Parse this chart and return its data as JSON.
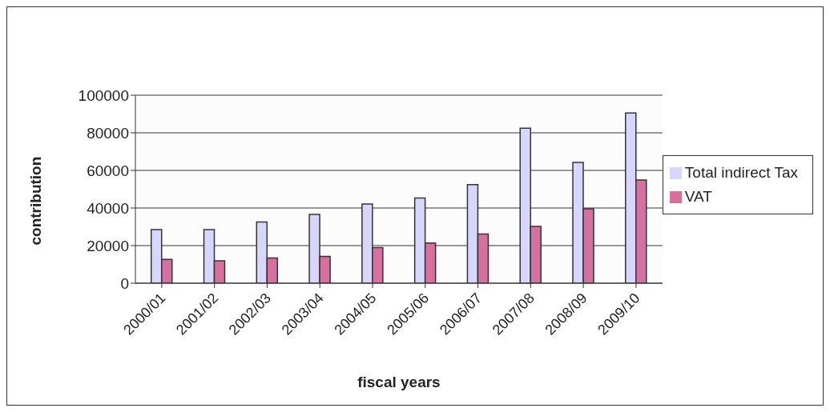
{
  "chart_data": {
    "type": "bar",
    "xlabel": "fiscal years",
    "ylabel": "contribution",
    "categories": [
      "2000/01",
      "2001/02",
      "2002/03",
      "2003/04",
      "2004/05",
      "2005/06",
      "2006/07",
      "2007/08",
      "2008/09",
      "2009/10"
    ],
    "series": [
      {
        "name": "Total indirect Tax",
        "color": "#d6d6ff",
        "values": [
          28500,
          28500,
          32600,
          36600,
          42100,
          45300,
          52400,
          82500,
          64300,
          90500
        ]
      },
      {
        "name": "VAT",
        "color": "#d6709e",
        "values": [
          12700,
          11900,
          13400,
          14300,
          18900,
          21400,
          26200,
          30200,
          39600,
          54900
        ]
      }
    ],
    "ylim": [
      0,
      100000
    ],
    "yticks": [
      0,
      20000,
      40000,
      60000,
      80000,
      100000
    ],
    "grid": "y",
    "legend": "right"
  }
}
